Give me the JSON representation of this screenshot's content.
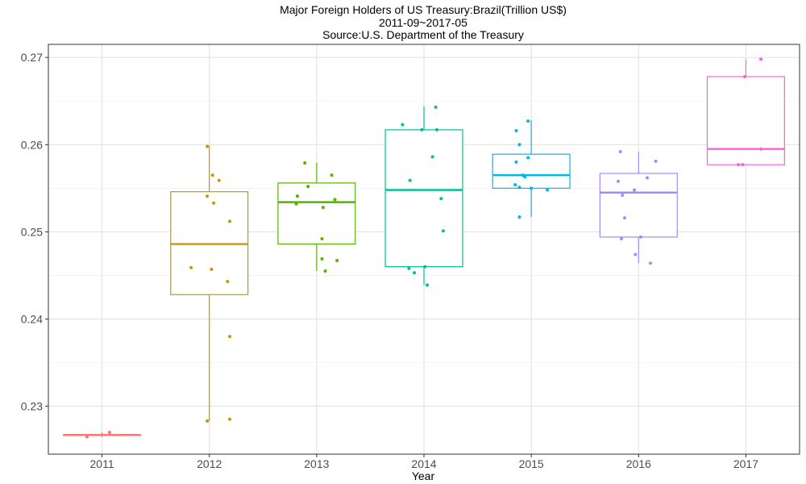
{
  "chart_data": {
    "type": "boxplot",
    "title_lines": [
      "Major Foreign Holders of US Treasury:Brazil(Trillion US$)",
      "2011-09~2017-05",
      "Source:U.S. Department of the Treasury"
    ],
    "xlabel": "Year",
    "ylabel": "",
    "ylim": [
      0.2245,
      0.2715
    ],
    "y_ticks": [
      0.23,
      0.24,
      0.25,
      0.26,
      0.27
    ],
    "y_tick_labels": [
      "0.23",
      "0.24",
      "0.25",
      "0.26",
      "0.27"
    ],
    "grid": true,
    "legend": "none",
    "categories": [
      "2011",
      "2012",
      "2013",
      "2014",
      "2015",
      "2016",
      "2017"
    ],
    "boxes": [
      {
        "category": "2011",
        "color": "#F8766D",
        "min": 0.2265,
        "q1": 0.2267,
        "median": 0.2267,
        "q3": 0.2267,
        "max": 0.227
      },
      {
        "category": "2012",
        "color": "#C49A00",
        "min": 0.2283,
        "q1": 0.2428,
        "median": 0.2486,
        "q3": 0.2546,
        "max": 0.2599
      },
      {
        "category": "2013",
        "color": "#53B400",
        "min": 0.2455,
        "q1": 0.2486,
        "median": 0.2534,
        "q3": 0.2556,
        "max": 0.2579
      },
      {
        "category": "2014",
        "color": "#00C094",
        "min": 0.2439,
        "q1": 0.246,
        "median": 0.2548,
        "q3": 0.2617,
        "max": 0.2644
      },
      {
        "category": "2015",
        "color": "#00B6EB",
        "min": 0.2517,
        "q1": 0.255,
        "median": 0.2565,
        "q3": 0.2589,
        "max": 0.2628
      },
      {
        "category": "2016",
        "color": "#A58AFF",
        "min": 0.2464,
        "q1": 0.2494,
        "median": 0.2545,
        "q3": 0.2567,
        "max": 0.2592
      },
      {
        "category": "2017",
        "color": "#FB61D7",
        "min": 0.2577,
        "q1": 0.2577,
        "median": 0.2595,
        "q3": 0.2678,
        "max": 0.2698
      }
    ],
    "points": [
      {
        "category": "2011",
        "values": [
          0.2265,
          0.227
        ],
        "offsets": [
          -0.14,
          0.07
        ]
      },
      {
        "category": "2012",
        "values": [
          0.2598,
          0.2565,
          0.2559,
          0.2541,
          0.2533,
          0.2512,
          0.2459,
          0.2457,
          0.2443,
          0.238,
          0.2285,
          0.2283
        ],
        "offsets": [
          -0.02,
          0.03,
          0.09,
          -0.02,
          0.04,
          0.19,
          -0.17,
          0.02,
          0.17,
          0.19,
          0.19,
          -0.02
        ]
      },
      {
        "category": "2013",
        "values": [
          0.2579,
          0.2565,
          0.2552,
          0.2541,
          0.2537,
          0.2532,
          0.2528,
          0.2492,
          0.2469,
          0.2467,
          0.2455
        ],
        "offsets": [
          -0.11,
          0.14,
          -0.08,
          -0.18,
          0.17,
          -0.19,
          0.06,
          0.05,
          0.05,
          0.19,
          0.08
        ]
      },
      {
        "category": "2014",
        "values": [
          0.2643,
          0.2623,
          0.2617,
          0.2617,
          0.2586,
          0.2559,
          0.2538,
          0.2501,
          0.246,
          0.2458,
          0.2453,
          0.2439
        ],
        "offsets": [
          0.11,
          -0.2,
          0.12,
          -0.02,
          0.08,
          -0.13,
          0.16,
          0.18,
          0.01,
          -0.14,
          -0.09,
          0.03
        ]
      },
      {
        "category": "2015",
        "values": [
          0.2627,
          0.2616,
          0.26,
          0.2585,
          0.258,
          0.2565,
          0.2563,
          0.2554,
          0.2551,
          0.255,
          0.2548,
          0.2517
        ],
        "offsets": [
          -0.03,
          -0.14,
          -0.11,
          -0.03,
          -0.14,
          -0.08,
          -0.06,
          -0.15,
          -0.11,
          0.0,
          0.15,
          -0.11
        ]
      },
      {
        "category": "2016",
        "values": [
          0.2592,
          0.2581,
          0.2562,
          0.2558,
          0.2548,
          0.2542,
          0.2516,
          0.2494,
          0.2492,
          0.2474,
          0.2464
        ],
        "offsets": [
          -0.17,
          0.16,
          0.08,
          -0.19,
          -0.04,
          -0.15,
          -0.13,
          0.02,
          -0.16,
          -0.03,
          0.11
        ]
      },
      {
        "category": "2017",
        "values": [
          0.2698,
          0.2678,
          0.2595,
          0.2577,
          0.2577
        ],
        "offsets": [
          0.14,
          -0.01,
          0.14,
          -0.07,
          -0.03
        ]
      }
    ]
  }
}
